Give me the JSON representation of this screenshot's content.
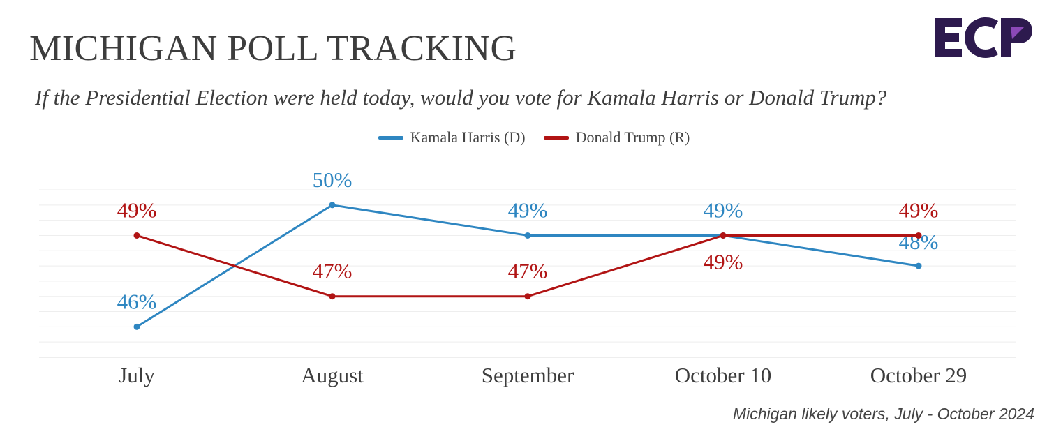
{
  "title": "MICHIGAN POLL TRACKING",
  "subtitle": "If the Presidential Election were held today, would you vote for Kamala Harris or Donald Trump?",
  "source": "Michigan likely voters, July - October 2024",
  "logo": {
    "text": "ECP",
    "colors": [
      "#2d1a4e",
      "#7a3a9a"
    ]
  },
  "chart_data": {
    "type": "line",
    "title": "MICHIGAN POLL TRACKING",
    "categories": [
      "July",
      "August",
      "September",
      "October 10",
      "October 29"
    ],
    "series": [
      {
        "name": "Kamala Harris (D)",
        "color": "#2e86c1",
        "values": [
          46,
          50,
          49,
          49,
          48
        ],
        "labels": [
          "46%",
          "50%",
          "49%",
          "49%",
          "48%"
        ]
      },
      {
        "name": "Donald Trump (R)",
        "color": "#b11414",
        "values": [
          49,
          47,
          47,
          49,
          49
        ],
        "labels": [
          "49%",
          "47%",
          "47%",
          "49%",
          "49%"
        ]
      }
    ],
    "ylim": [
      45,
      50.5
    ],
    "grid": true,
    "legend": "top-center"
  }
}
